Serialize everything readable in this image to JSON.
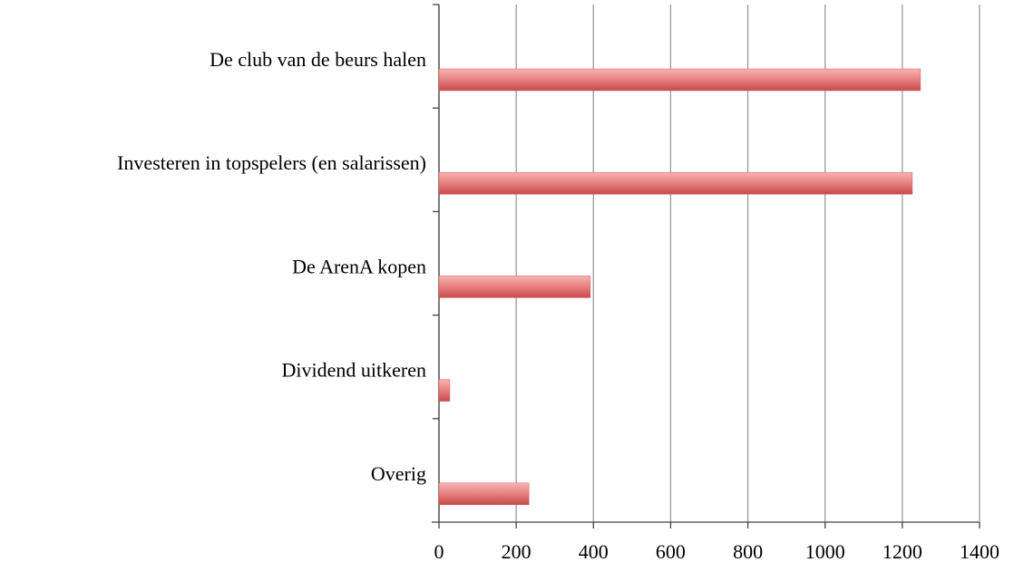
{
  "chart_data": {
    "type": "bar",
    "orientation": "horizontal",
    "categories": [
      "De club van de beurs halen",
      "Investeren in topspelers (en salarissen)",
      "De ArenA kopen",
      "Dividend uitkeren",
      "Overig"
    ],
    "values": [
      1247,
      1226,
      392,
      28,
      233
    ],
    "color": "#d9585a",
    "xlim": [
      0,
      1400
    ],
    "xticks": [
      0,
      200,
      400,
      600,
      800,
      1000,
      1200,
      1400
    ],
    "grid": true
  }
}
